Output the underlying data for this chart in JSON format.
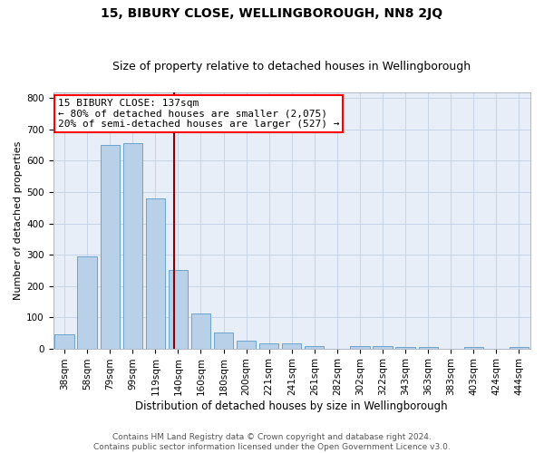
{
  "title": "15, BIBURY CLOSE, WELLINGBOROUGH, NN8 2JQ",
  "subtitle": "Size of property relative to detached houses in Wellingborough",
  "xlabel": "Distribution of detached houses by size in Wellingborough",
  "ylabel": "Number of detached properties",
  "categories": [
    "38sqm",
    "58sqm",
    "79sqm",
    "99sqm",
    "119sqm",
    "140sqm",
    "160sqm",
    "180sqm",
    "200sqm",
    "221sqm",
    "241sqm",
    "261sqm",
    "282sqm",
    "302sqm",
    "322sqm",
    "343sqm",
    "363sqm",
    "383sqm",
    "403sqm",
    "424sqm",
    "444sqm"
  ],
  "values": [
    45,
    293,
    650,
    655,
    480,
    250,
    113,
    50,
    26,
    15,
    15,
    8,
    0,
    8,
    8,
    6,
    5,
    0,
    5,
    0,
    5
  ],
  "bar_color": "#b8d0e8",
  "bar_edge_color": "#5a9ac8",
  "annotation_line0": "15 BIBURY CLOSE: 137sqm",
  "annotation_line1": "← 80% of detached houses are smaller (2,075)",
  "annotation_line2": "20% of semi-detached houses are larger (527) →",
  "box_color": "white",
  "box_edge_color": "red",
  "vline_color": "#8b0000",
  "vline_pos": 4.82,
  "ylim": [
    0,
    820
  ],
  "yticks": [
    0,
    100,
    200,
    300,
    400,
    500,
    600,
    700,
    800
  ],
  "grid_color": "#c8d4e8",
  "bg_color": "#e8eef8",
  "footer": "Contains HM Land Registry data © Crown copyright and database right 2024.\nContains public sector information licensed under the Open Government Licence v3.0.",
  "title_fontsize": 10,
  "subtitle_fontsize": 9,
  "xlabel_fontsize": 8.5,
  "ylabel_fontsize": 8,
  "tick_fontsize": 7.5,
  "annotation_fontsize": 8,
  "footer_fontsize": 6.5
}
